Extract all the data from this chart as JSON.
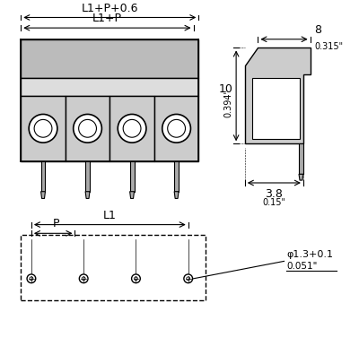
{
  "bg_color": "#ffffff",
  "line_color": "#000000",
  "gray_color": "#888888",
  "dark_gray": "#555555",
  "figsize": [
    4.0,
    3.86
  ],
  "dpi": 100,
  "labels": {
    "L1_P_06": "L1+P+0.6",
    "L1_P": "L1+P",
    "L1": "L1",
    "P": "P",
    "dim_8": "8",
    "dim_0315": "0.315\"",
    "dim_10": "10",
    "dim_0394": "0.394\"",
    "dim_38": "3.8",
    "dim_015": "0.15\"",
    "dim_phi": "φ1.3+0.1",
    "dim_0051": "0.051\""
  }
}
